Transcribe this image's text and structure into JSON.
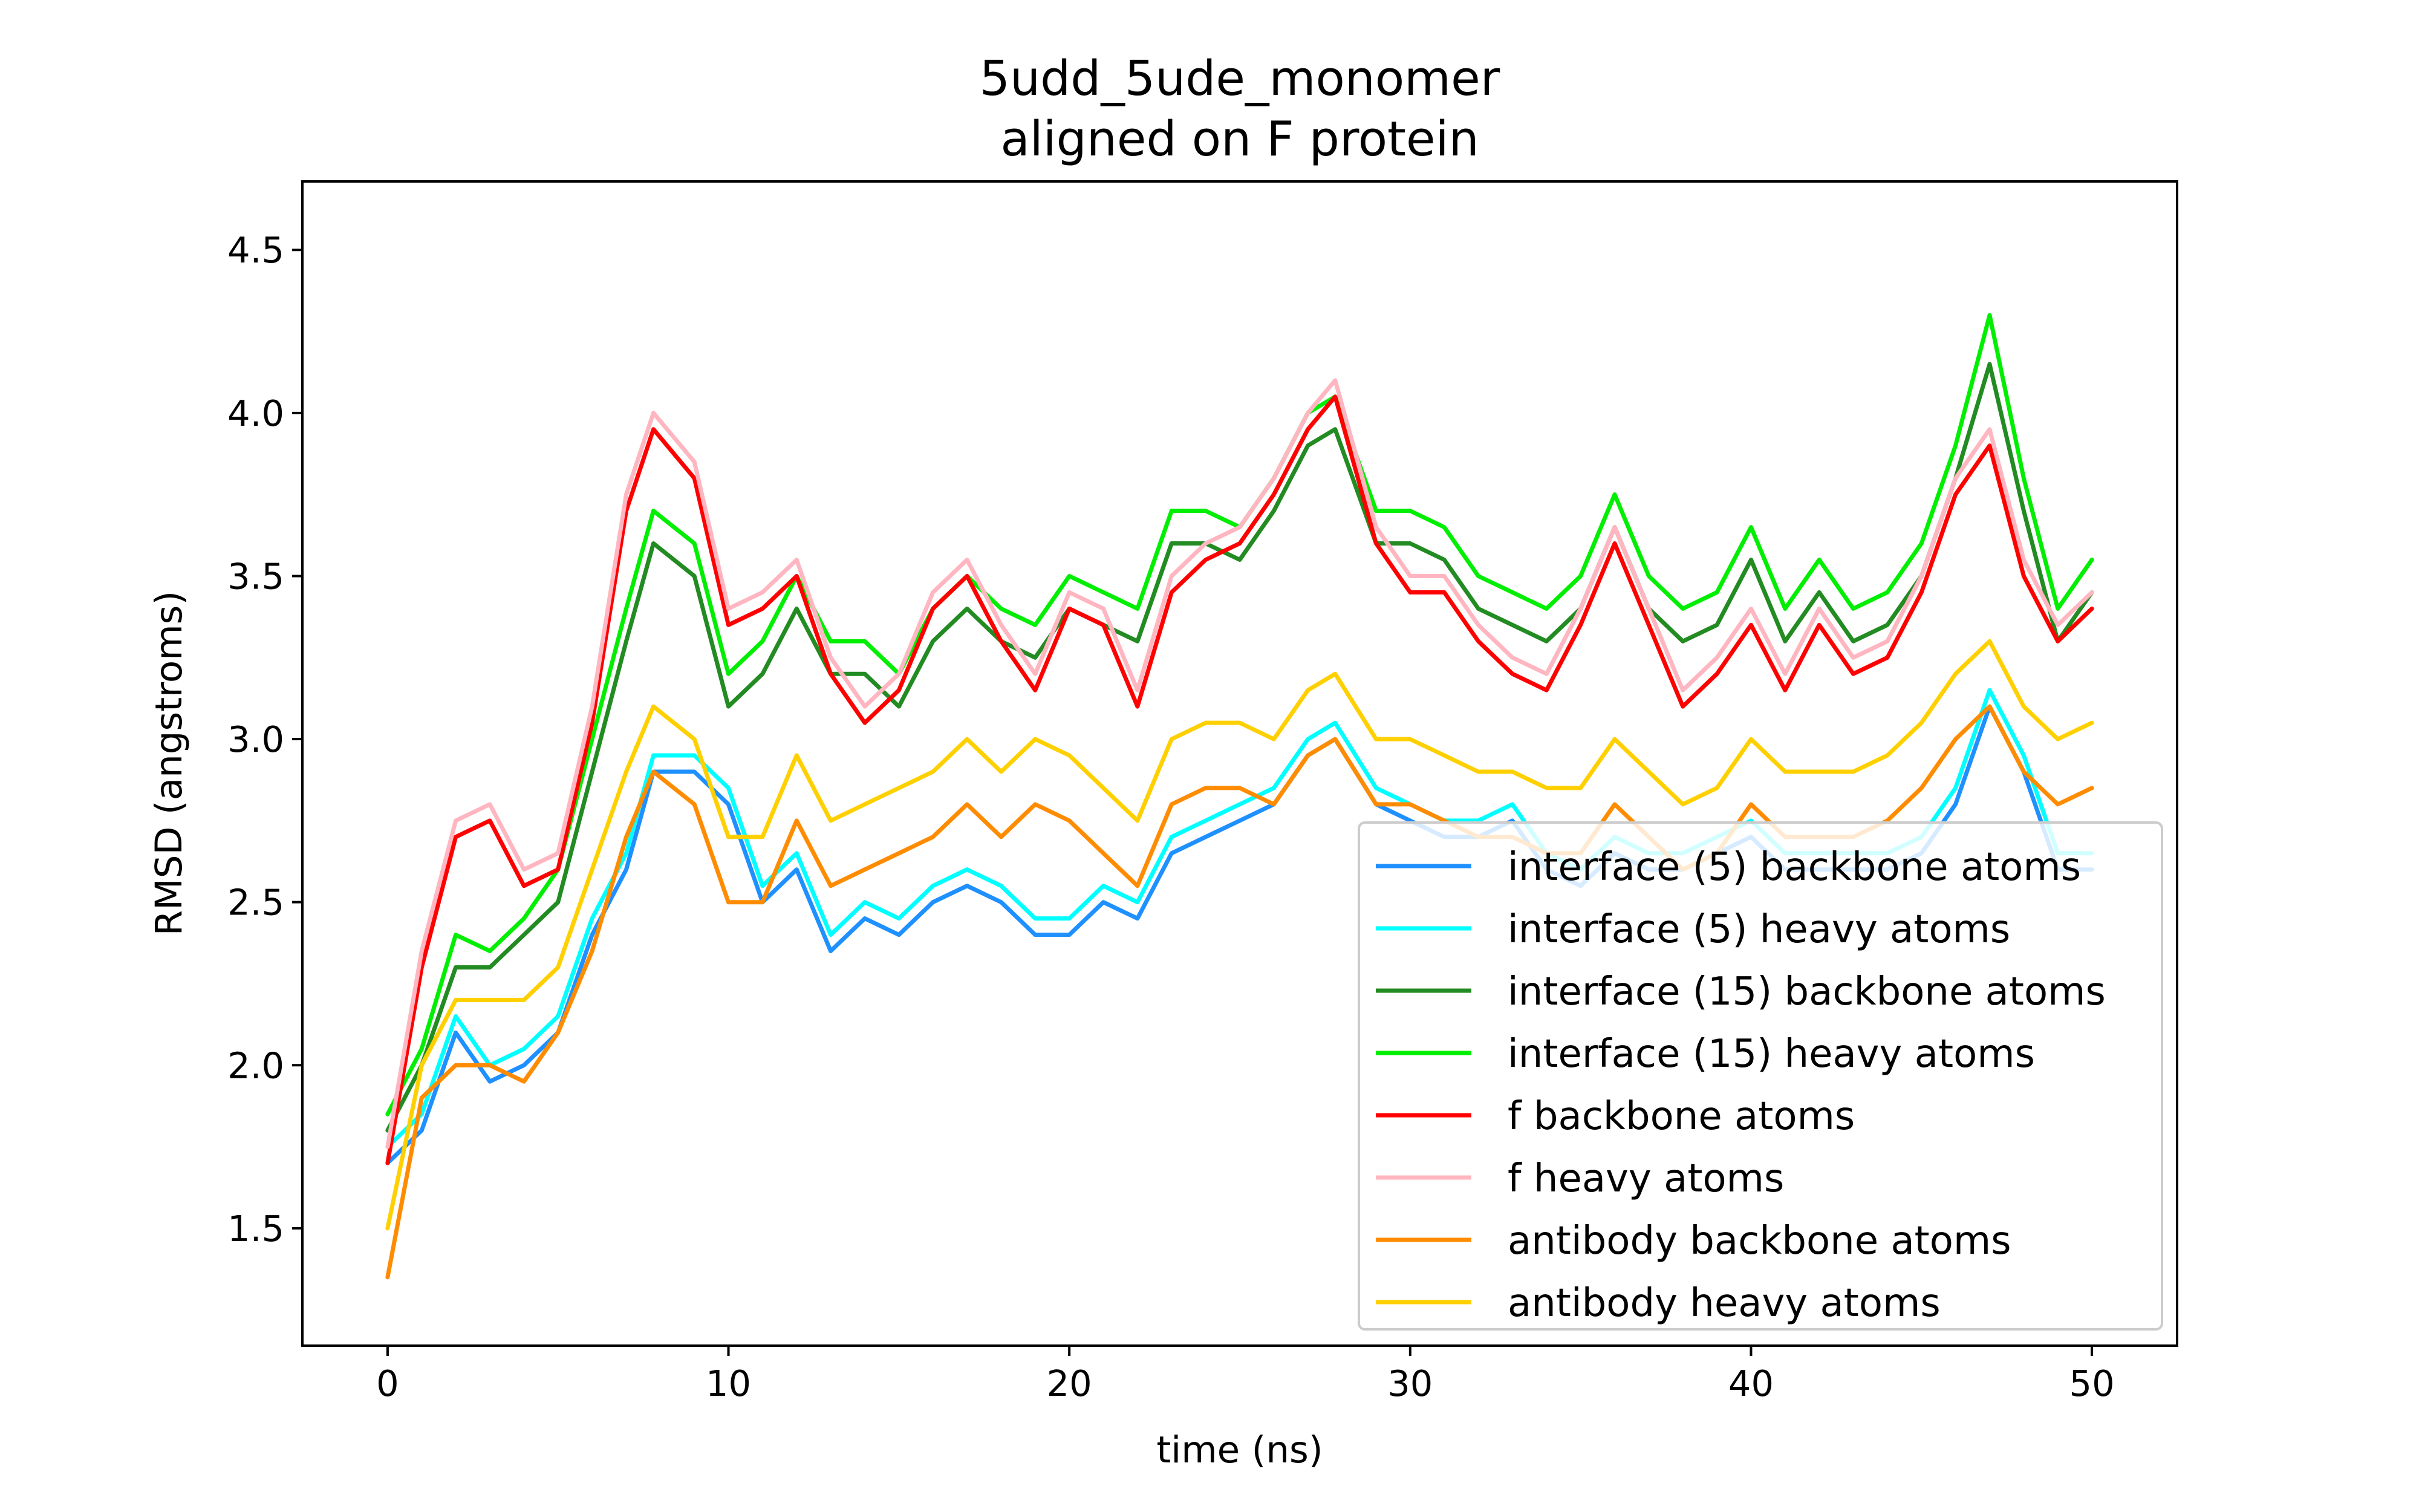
{
  "chart_data": {
    "type": "line",
    "title": "5udd_5ude_monomer",
    "subtitle": "aligned on F protein",
    "xlabel": "time (ns)",
    "ylabel": "RMSD (angstroms)",
    "xlim": [
      -2.5,
      52.5
    ],
    "ylim": [
      1.14,
      4.71
    ],
    "xticks": [
      0,
      10,
      20,
      30,
      40,
      50
    ],
    "xtick_labels": [
      "0",
      "10",
      "20",
      "30",
      "40",
      "50"
    ],
    "yticks": [
      1.5,
      2.0,
      2.5,
      3.0,
      3.5,
      4.0,
      4.5
    ],
    "ytick_labels": [
      "1.5",
      "2.0",
      "2.5",
      "3.0",
      "3.5",
      "4.0",
      "4.5"
    ],
    "grid": false,
    "legend_position": "lower-right",
    "x": [
      0,
      1,
      2,
      3,
      4,
      5,
      6,
      7,
      7.8,
      9,
      10,
      11,
      12,
      13,
      14,
      15,
      16,
      17,
      18,
      19,
      20,
      21,
      22,
      23,
      24,
      25,
      26,
      27,
      27.8,
      29,
      30,
      31,
      32,
      33,
      34,
      35,
      36,
      37,
      38,
      39,
      40,
      41,
      42,
      43,
      44,
      45,
      46,
      47,
      48,
      49,
      50
    ],
    "series": [
      {
        "name": "interface (5) backbone atoms",
        "color": "#1e90ff",
        "values": [
          1.7,
          1.8,
          2.1,
          1.95,
          2.0,
          2.1,
          2.4,
          2.6,
          2.9,
          2.9,
          2.8,
          2.5,
          2.6,
          2.35,
          2.45,
          2.4,
          2.5,
          2.55,
          2.5,
          2.4,
          2.4,
          2.5,
          2.45,
          2.65,
          2.7,
          2.75,
          2.8,
          2.95,
          3.0,
          2.8,
          2.75,
          2.7,
          2.7,
          2.75,
          2.6,
          2.55,
          2.65,
          2.6,
          2.6,
          2.65,
          2.7,
          2.6,
          2.6,
          2.6,
          2.6,
          2.65,
          2.8,
          3.1,
          2.9,
          2.6,
          2.6
        ]
      },
      {
        "name": "interface (5) heavy atoms",
        "color": "#00ffff",
        "values": [
          1.75,
          1.85,
          2.15,
          2.0,
          2.05,
          2.15,
          2.45,
          2.65,
          2.95,
          2.95,
          2.85,
          2.55,
          2.65,
          2.4,
          2.5,
          2.45,
          2.55,
          2.6,
          2.55,
          2.45,
          2.45,
          2.55,
          2.5,
          2.7,
          2.75,
          2.8,
          2.85,
          3.0,
          3.05,
          2.85,
          2.8,
          2.75,
          2.75,
          2.8,
          2.65,
          2.6,
          2.7,
          2.65,
          2.65,
          2.7,
          2.75,
          2.65,
          2.65,
          2.65,
          2.65,
          2.7,
          2.85,
          3.15,
          2.95,
          2.65,
          2.65
        ]
      },
      {
        "name": "interface (15) backbone atoms",
        "color": "#228b22",
        "values": [
          1.8,
          2.0,
          2.3,
          2.3,
          2.4,
          2.5,
          2.9,
          3.3,
          3.6,
          3.5,
          3.1,
          3.2,
          3.4,
          3.2,
          3.2,
          3.1,
          3.3,
          3.4,
          3.3,
          3.25,
          3.4,
          3.35,
          3.3,
          3.6,
          3.6,
          3.55,
          3.7,
          3.9,
          3.95,
          3.6,
          3.6,
          3.55,
          3.4,
          3.35,
          3.3,
          3.4,
          3.65,
          3.4,
          3.3,
          3.35,
          3.55,
          3.3,
          3.45,
          3.3,
          3.35,
          3.5,
          3.8,
          4.15,
          3.7,
          3.3,
          3.45
        ]
      },
      {
        "name": "interface (15) heavy atoms",
        "color": "#00ee00",
        "values": [
          1.85,
          2.05,
          2.4,
          2.35,
          2.45,
          2.6,
          3.0,
          3.4,
          3.7,
          3.6,
          3.2,
          3.3,
          3.5,
          3.3,
          3.3,
          3.2,
          3.4,
          3.5,
          3.4,
          3.35,
          3.5,
          3.45,
          3.4,
          3.7,
          3.7,
          3.65,
          3.8,
          4.0,
          4.05,
          3.7,
          3.7,
          3.65,
          3.5,
          3.45,
          3.4,
          3.5,
          3.75,
          3.5,
          3.4,
          3.45,
          3.65,
          3.4,
          3.55,
          3.4,
          3.45,
          3.6,
          3.9,
          4.3,
          3.8,
          3.4,
          3.55
        ]
      },
      {
        "name": "f backbone atoms",
        "color": "#ff0000",
        "values": [
          1.7,
          2.3,
          2.7,
          2.75,
          2.55,
          2.6,
          3.05,
          3.7,
          3.95,
          3.8,
          3.35,
          3.4,
          3.5,
          3.2,
          3.05,
          3.15,
          3.4,
          3.5,
          3.3,
          3.15,
          3.4,
          3.35,
          3.1,
          3.45,
          3.55,
          3.6,
          3.75,
          3.95,
          4.05,
          3.6,
          3.45,
          3.45,
          3.3,
          3.2,
          3.15,
          3.35,
          3.6,
          3.35,
          3.1,
          3.2,
          3.35,
          3.15,
          3.35,
          3.2,
          3.25,
          3.45,
          3.75,
          3.9,
          3.5,
          3.3,
          3.4
        ]
      },
      {
        "name": "f heavy atoms",
        "color": "#ffb6c1",
        "values": [
          1.75,
          2.35,
          2.75,
          2.8,
          2.6,
          2.65,
          3.1,
          3.75,
          4.0,
          3.85,
          3.4,
          3.45,
          3.55,
          3.25,
          3.1,
          3.2,
          3.45,
          3.55,
          3.35,
          3.2,
          3.45,
          3.4,
          3.15,
          3.5,
          3.6,
          3.65,
          3.8,
          4.0,
          4.1,
          3.65,
          3.5,
          3.5,
          3.35,
          3.25,
          3.2,
          3.4,
          3.65,
          3.4,
          3.15,
          3.25,
          3.4,
          3.2,
          3.4,
          3.25,
          3.3,
          3.5,
          3.8,
          3.95,
          3.55,
          3.35,
          3.45
        ]
      },
      {
        "name": "antibody backbone atoms",
        "color": "#ff8c00",
        "values": [
          1.35,
          1.9,
          2.0,
          2.0,
          1.95,
          2.1,
          2.35,
          2.7,
          2.9,
          2.8,
          2.5,
          2.5,
          2.75,
          2.55,
          2.6,
          2.65,
          2.7,
          2.8,
          2.7,
          2.8,
          2.75,
          2.65,
          2.55,
          2.8,
          2.85,
          2.85,
          2.8,
          2.95,
          3.0,
          2.8,
          2.8,
          2.75,
          2.7,
          2.7,
          2.65,
          2.65,
          2.8,
          2.7,
          2.6,
          2.65,
          2.8,
          2.7,
          2.7,
          2.7,
          2.75,
          2.85,
          3.0,
          3.1,
          2.9,
          2.8,
          2.85
        ]
      },
      {
        "name": "antibody heavy atoms",
        "color": "#ffd000",
        "values": [
          1.5,
          2.0,
          2.2,
          2.2,
          2.2,
          2.3,
          2.6,
          2.9,
          3.1,
          3.0,
          2.7,
          2.7,
          2.95,
          2.75,
          2.8,
          2.85,
          2.9,
          3.0,
          2.9,
          3.0,
          2.95,
          2.85,
          2.75,
          3.0,
          3.05,
          3.05,
          3.0,
          3.15,
          3.2,
          3.0,
          3.0,
          2.95,
          2.9,
          2.9,
          2.85,
          2.85,
          3.0,
          2.9,
          2.8,
          2.85,
          3.0,
          2.9,
          2.9,
          2.9,
          2.95,
          3.05,
          3.2,
          3.3,
          3.1,
          3.0,
          3.05
        ]
      }
    ]
  }
}
